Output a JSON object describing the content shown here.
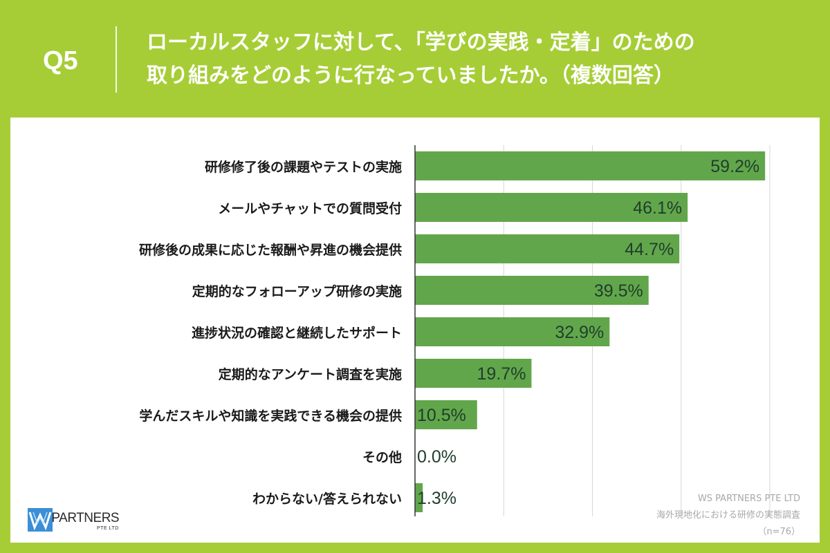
{
  "header": {
    "question_label": "Q5",
    "title_line1": "ローカルスタッフに対して、「学びの実践・定着」のための",
    "title_line2": "取り組みをどのように行なっていましたか。（複数回答）"
  },
  "chart_data": {
    "type": "bar",
    "orientation": "horizontal",
    "categories": [
      "研修修了後の課題やテストの実施",
      "メールやチャットでの質問受付",
      "研修後の成果に応じた報酬や昇進の機会提供",
      "定期的なフォローアップ研修の実施",
      "進捗状況の確認と継続したサポート",
      "定期的なアンケート調査を実施",
      "学んだスキルや知識を実践できる機会の提供",
      "その他",
      "わからない/答えられない"
    ],
    "values": [
      59.2,
      46.1,
      44.7,
      39.5,
      32.9,
      19.7,
      10.5,
      0.0,
      1.3
    ],
    "value_labels": [
      "59.2%",
      "46.1%",
      "44.7%",
      "39.5%",
      "32.9%",
      "19.7%",
      "10.5%",
      "0.0%",
      "1.3%"
    ],
    "xlim": [
      0,
      60
    ],
    "gridlines": [
      0,
      15,
      30,
      45,
      60
    ],
    "grid": true,
    "bar_color": "#62a64b",
    "value_label_color": "#1e3e2c"
  },
  "source": {
    "company": "WS PARTNERS PTE LTD",
    "survey": "海外現地化における研修の実態調査",
    "sample": "（n=76）"
  },
  "brand": {
    "name": "WS PARTNERS",
    "sub": "PTE LTD",
    "mark_color": "#3a8fd6"
  },
  "colors": {
    "background": "#a6cd36",
    "panel": "#ffffff",
    "header_text": "#ffffff"
  }
}
